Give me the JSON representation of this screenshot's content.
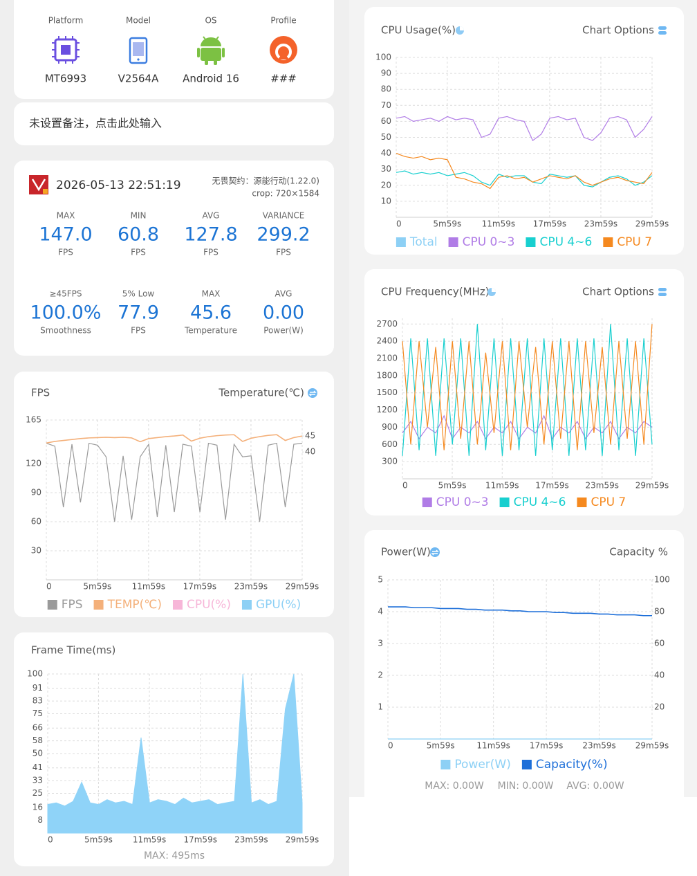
{
  "device": {
    "items": [
      {
        "label": "Platform",
        "value": "MT6993"
      },
      {
        "label": "Model",
        "value": "V2564A"
      },
      {
        "label": "OS",
        "value": "Android 16"
      },
      {
        "label": "Profile",
        "value": "###"
      }
    ]
  },
  "note": "未设置备注，点击此处输入",
  "session": {
    "datetime": "2026-05-13 22:51:19",
    "app": "无畏契约：源能行动(1.22.0)",
    "crop": "crop: 720×1584",
    "stats": [
      {
        "label": "MAX",
        "value": "147.0",
        "unit": "FPS"
      },
      {
        "label": "MIN",
        "value": "60.8",
        "unit": "FPS"
      },
      {
        "label": "AVG",
        "value": "127.8",
        "unit": "FPS"
      },
      {
        "label": "VARIANCE",
        "value": "299.2",
        "unit": "FPS"
      },
      {
        "label": "≥45FPS",
        "value": "100.0%",
        "unit": "Smoothness"
      },
      {
        "label": "5% Low",
        "value": "77.9",
        "unit": "FPS"
      },
      {
        "label": "MAX",
        "value": "45.6",
        "unit": "Temperature"
      },
      {
        "label": "AVG",
        "value": "0.00",
        "unit": "Power(W)"
      }
    ]
  },
  "chart_data": [
    {
      "type": "line",
      "title": "FPS",
      "right_label": "Temperature(℃)",
      "x": [
        0,
        60,
        120,
        180,
        240,
        300,
        360,
        420,
        480,
        540,
        600,
        660,
        720,
        780,
        840,
        900,
        960,
        1020,
        1080,
        1140,
        1200,
        1260,
        1320,
        1380,
        1440,
        1500,
        1560,
        1620,
        1680,
        1740,
        1799
      ],
      "xlim": [
        0,
        1799
      ],
      "xticks": [
        0,
        {
          "value": 359,
          "label": "5m59s"
        },
        {
          "value": 719,
          "label": "11m59s"
        },
        {
          "value": 1079,
          "label": "17m59s"
        },
        {
          "value": 1439,
          "label": "23m59s"
        },
        {
          "value": 1799,
          "label": "29m59s"
        }
      ],
      "ylim": [
        0,
        165
      ],
      "yticks": [
        30,
        60,
        90,
        120,
        165
      ],
      "y2lim": [
        0,
        50
      ],
      "y2ticks": [
        40,
        45
      ],
      "grid": true,
      "series": [
        {
          "name": "FPS",
          "color": "#9a9a9a",
          "values": [
            141,
            138,
            75,
            140,
            80,
            141,
            139,
            127,
            60,
            128,
            62,
            127,
            140,
            65,
            139,
            70,
            140,
            138,
            70,
            141,
            139,
            62,
            140,
            127,
            128,
            60,
            139,
            141,
            75,
            140,
            141
          ]
        },
        {
          "name": "TEMP(℃)",
          "color": "#f4b07a",
          "axis": "y2",
          "values": [
            42.8,
            43.3,
            43.6,
            43.9,
            44.2,
            44.4,
            44.5,
            44.6,
            44.5,
            44.6,
            44.4,
            43.2,
            44.2,
            44.5,
            44.8,
            45.0,
            45.3,
            43.4,
            44.3,
            44.8,
            45.1,
            45.3,
            45.4,
            43.3,
            44.3,
            44.8,
            45.2,
            45.4,
            43.6,
            44.5,
            45.0
          ]
        },
        {
          "name": "CPU(%)",
          "color": "#f7b6d8",
          "values": [
            null,
            null,
            null,
            null,
            null,
            null,
            null,
            null,
            null,
            null,
            null,
            null,
            null,
            null,
            null,
            null,
            null,
            null,
            null,
            null,
            null,
            null,
            null,
            null,
            null,
            null,
            null,
            null,
            null,
            null,
            null
          ]
        },
        {
          "name": "GPU(%)",
          "color": "#8dd0f5",
          "values": [
            null,
            null,
            null,
            null,
            null,
            null,
            null,
            null,
            null,
            null,
            null,
            null,
            null,
            null,
            null,
            null,
            null,
            null,
            null,
            null,
            null,
            null,
            null,
            null,
            null,
            null,
            null,
            null,
            null,
            null,
            null
          ]
        }
      ]
    },
    {
      "type": "area",
      "title": "Frame Time(ms)",
      "footer": [
        "MAX: 495ms"
      ],
      "x": [
        0,
        60,
        120,
        180,
        240,
        300,
        360,
        420,
        480,
        540,
        600,
        660,
        720,
        780,
        840,
        900,
        960,
        1020,
        1080,
        1140,
        1200,
        1260,
        1320,
        1380,
        1440,
        1500,
        1560,
        1620,
        1680,
        1740,
        1799
      ],
      "xlim": [
        0,
        1799
      ],
      "xticks": [
        0,
        {
          "value": 359,
          "label": "5m59s"
        },
        {
          "value": 719,
          "label": "11m59s"
        },
        {
          "value": 1079,
          "label": "17m59s"
        },
        {
          "value": 1439,
          "label": "23m59s"
        },
        {
          "value": 1799,
          "label": "29m59s"
        }
      ],
      "ylim": [
        0,
        100
      ],
      "yticks": [
        8,
        16,
        25,
        33,
        41,
        50,
        58,
        66,
        75,
        83,
        91,
        100
      ],
      "grid": true,
      "color": "#8fd3f8",
      "values": [
        18,
        19,
        17,
        20,
        32,
        19,
        18,
        21,
        19,
        20,
        18,
        60,
        19,
        21,
        20,
        18,
        22,
        19,
        20,
        21,
        18,
        19,
        20,
        100,
        19,
        21,
        18,
        20,
        78,
        100,
        19
      ]
    },
    {
      "type": "line",
      "title": "CPU Usage(%)",
      "right_label": "Chart Options",
      "x": [
        0,
        60,
        120,
        180,
        240,
        300,
        360,
        420,
        480,
        540,
        600,
        660,
        720,
        780,
        840,
        900,
        960,
        1020,
        1080,
        1140,
        1200,
        1260,
        1320,
        1380,
        1440,
        1500,
        1560,
        1620,
        1680,
        1740,
        1799
      ],
      "xlim": [
        0,
        1799
      ],
      "xticks": [
        0,
        {
          "value": 359,
          "label": "5m59s"
        },
        {
          "value": 719,
          "label": "11m59s"
        },
        {
          "value": 1079,
          "label": "17m59s"
        },
        {
          "value": 1439,
          "label": "23m59s"
        },
        {
          "value": 1799,
          "label": "29m59s"
        }
      ],
      "ylim": [
        0,
        100
      ],
      "yticks": [
        10,
        20,
        30,
        40,
        50,
        60,
        70,
        80,
        90,
        100
      ],
      "grid": true,
      "series": [
        {
          "name": "Total",
          "color": "#8dd0f5",
          "values": [
            null,
            null,
            null,
            null,
            null,
            null,
            null,
            null,
            null,
            null,
            null,
            null,
            null,
            null,
            null,
            null,
            null,
            null,
            null,
            null,
            null,
            null,
            null,
            null,
            null,
            null,
            null,
            null,
            null,
            null,
            null
          ]
        },
        {
          "name": "CPU 0~3",
          "color": "#b07ce6",
          "values": [
            62,
            63,
            60,
            61,
            62,
            60,
            63,
            61,
            62,
            61,
            50,
            52,
            62,
            63,
            61,
            60,
            48,
            52,
            62,
            63,
            61,
            62,
            50,
            48,
            53,
            62,
            63,
            61,
            50,
            55,
            63
          ]
        },
        {
          "name": "CPU 4~6",
          "color": "#18cfcf",
          "values": [
            28,
            29,
            27,
            28,
            27,
            28,
            26,
            27,
            28,
            26,
            22,
            20,
            27,
            25,
            26,
            26,
            22,
            21,
            27,
            26,
            25,
            26,
            20,
            19,
            22,
            25,
            26,
            24,
            20,
            22,
            26
          ]
        },
        {
          "name": "CPU 7",
          "color": "#f5891f",
          "values": [
            40,
            38,
            37,
            38,
            36,
            37,
            36,
            25,
            24,
            22,
            21,
            18,
            25,
            26,
            24,
            25,
            22,
            24,
            26,
            25,
            24,
            26,
            22,
            20,
            22,
            24,
            25,
            23,
            22,
            21,
            28
          ]
        }
      ]
    },
    {
      "type": "line",
      "title": "CPU Frequency(MHz)",
      "right_label": "Chart Options",
      "x": [
        0,
        60,
        120,
        180,
        240,
        300,
        360,
        420,
        480,
        540,
        600,
        660,
        720,
        780,
        840,
        900,
        960,
        1020,
        1080,
        1140,
        1200,
        1260,
        1320,
        1380,
        1440,
        1500,
        1560,
        1620,
        1680,
        1740,
        1799
      ],
      "xlim": [
        0,
        1799
      ],
      "xticks": [
        0,
        {
          "value": 359,
          "label": "5m59s"
        },
        {
          "value": 719,
          "label": "11m59s"
        },
        {
          "value": 1079,
          "label": "17m59s"
        },
        {
          "value": 1439,
          "label": "23m59s"
        },
        {
          "value": 1799,
          "label": "29m59s"
        }
      ],
      "ylim": [
        0,
        2800
      ],
      "yticks": [
        300,
        600,
        900,
        1200,
        1500,
        1800,
        2100,
        2400,
        2700
      ],
      "grid": true,
      "series": [
        {
          "name": "CPU 0~3",
          "color": "#b07ce6",
          "values": [
            800,
            1000,
            700,
            900,
            800,
            1100,
            700,
            900,
            800,
            1000,
            700,
            900,
            800,
            1000,
            700,
            900,
            800,
            1100,
            700,
            900,
            800,
            1000,
            700,
            900,
            800,
            1000,
            700,
            900,
            800,
            1000,
            900
          ]
        },
        {
          "name": "CPU 4~6",
          "color": "#18cfcf",
          "values": [
            400,
            2450,
            500,
            2450,
            400,
            2450,
            600,
            2450,
            400,
            2700,
            500,
            2450,
            400,
            2450,
            500,
            2450,
            400,
            2450,
            500,
            2450,
            400,
            2450,
            500,
            2450,
            400,
            2700,
            500,
            2450,
            400,
            2450,
            600
          ]
        },
        {
          "name": "CPU 7",
          "color": "#f5891f",
          "values": [
            2400,
            600,
            2400,
            900,
            2300,
            500,
            2400,
            700,
            2400,
            600,
            2200,
            800,
            2400,
            500,
            2400,
            900,
            2300,
            600,
            2400,
            700,
            2400,
            500,
            2400,
            800,
            2300,
            600,
            2400,
            700,
            2400,
            600,
            2700
          ]
        }
      ]
    },
    {
      "type": "line",
      "title": "Power(W)",
      "right_label": "Capacity %",
      "footer": [
        "MAX: 0.00W",
        "MIN: 0.00W",
        "AVG: 0.00W"
      ],
      "x": [
        0,
        60,
        120,
        180,
        240,
        300,
        360,
        420,
        480,
        540,
        600,
        660,
        720,
        780,
        840,
        900,
        960,
        1020,
        1080,
        1140,
        1200,
        1260,
        1320,
        1380,
        1440,
        1500,
        1560,
        1620,
        1680,
        1740,
        1799
      ],
      "xlim": [
        0,
        1799
      ],
      "xticks": [
        0,
        {
          "value": 359,
          "label": "5m59s"
        },
        {
          "value": 719,
          "label": "11m59s"
        },
        {
          "value": 1079,
          "label": "17m59s"
        },
        {
          "value": 1439,
          "label": "23m59s"
        },
        {
          "value": 1799,
          "label": "29m59s"
        }
      ],
      "ylim": [
        0,
        5
      ],
      "yticks": [
        1,
        2,
        3,
        4,
        5
      ],
      "y2lim": [
        0,
        100
      ],
      "y2ticks": [
        20,
        40,
        60,
        80,
        100
      ],
      "grid": true,
      "series": [
        {
          "name": "Power(W)",
          "color": "#8dd0f5",
          "values": [
            0,
            0,
            0,
            0,
            0,
            0,
            0,
            0,
            0,
            0,
            0,
            0,
            0,
            0,
            0,
            0,
            0,
            0,
            0,
            0,
            0,
            0,
            0,
            0,
            0,
            0,
            0,
            0,
            0,
            0,
            0
          ]
        },
        {
          "name": "Capacity(%)",
          "color": "#1d6fd9",
          "axis": "y2",
          "values": [
            83,
            83,
            83,
            82.5,
            82.5,
            82.5,
            82,
            82,
            82,
            81.5,
            81.5,
            81,
            81,
            81,
            80.5,
            80.5,
            80,
            80,
            80,
            79.5,
            79.5,
            79,
            79,
            79,
            78.5,
            78.5,
            78,
            78,
            78,
            77.5,
            77.5
          ]
        }
      ]
    }
  ]
}
